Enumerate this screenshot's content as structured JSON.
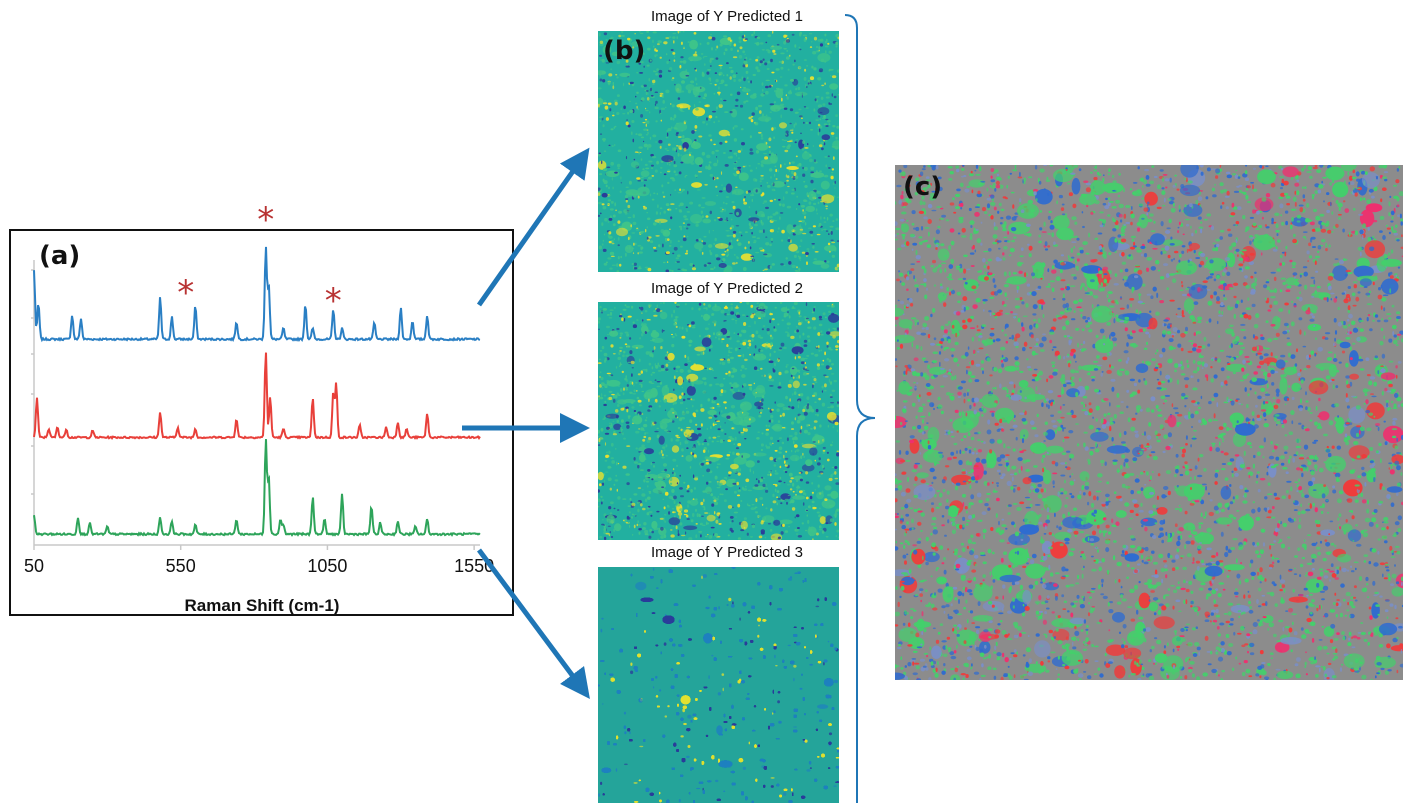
{
  "panels": {
    "a": {
      "label": "(a)"
    },
    "b": {
      "label": "(b)"
    },
    "c": {
      "label": "(c)"
    }
  },
  "chart_data": {
    "type": "line",
    "xlabel": "Raman Shift (cm-1)",
    "xticks": [
      "50",
      "550",
      "1050",
      "1550"
    ],
    "xlim": [
      50,
      1570
    ],
    "marker": "*",
    "marked_peaks": [
      550,
      840,
      1070
    ],
    "series": [
      {
        "color": "#2a7fc4",
        "x": [
          50,
          65,
          180,
          210,
          480,
          520,
          600,
          740,
          840,
          850,
          900,
          975,
          1000,
          1070,
          1100,
          1210,
          1300,
          1340,
          1390
        ],
        "y": [
          0.74,
          0.39,
          0.26,
          0.22,
          0.45,
          0.24,
          0.36,
          0.19,
          1.0,
          0.58,
          0.12,
          0.38,
          0.12,
          0.32,
          0.12,
          0.18,
          0.34,
          0.2,
          0.26
        ]
      },
      {
        "color": "#e8403a",
        "x": [
          60,
          100,
          130,
          160,
          250,
          480,
          540,
          600,
          740,
          840,
          855,
          900,
          1000,
          1070,
          1080,
          1160,
          1250,
          1290,
          1320,
          1390
        ],
        "y": [
          0.46,
          0.1,
          0.12,
          0.1,
          0.08,
          0.3,
          0.12,
          0.1,
          0.22,
          1.0,
          0.46,
          0.1,
          0.46,
          0.52,
          0.62,
          0.14,
          0.12,
          0.18,
          0.1,
          0.28
        ]
      },
      {
        "color": "#2ea45a",
        "x": [
          50,
          200,
          240,
          300,
          480,
          520,
          600,
          740,
          840,
          850,
          890,
          900,
          1000,
          1040,
          1100,
          1200,
          1230,
          1290,
          1350,
          1390
        ],
        "y": [
          0.2,
          0.18,
          0.12,
          0.08,
          0.18,
          0.14,
          0.1,
          0.16,
          1.0,
          0.6,
          0.16,
          0.1,
          0.4,
          0.16,
          0.42,
          0.3,
          0.12,
          0.14,
          0.08,
          0.16
        ]
      }
    ]
  },
  "predicted_maps": [
    {
      "title": "Image of Y Predicted 1",
      "colors": {
        "base": "#22b0a0",
        "high": "#e8e030",
        "low": "#2a3c9a",
        "mid": "#3ec48a"
      }
    },
    {
      "title": "Image of Y Predicted 2",
      "colors": {
        "base": "#22b0a0",
        "high": "#e8e030",
        "low": "#2a3c9a",
        "mid": "#3ec48a"
      }
    },
    {
      "title": "Image of Y Predicted 3",
      "colors": {
        "base": "#24a49a",
        "high": "#e0e030",
        "low": "#2a3c9a",
        "mid": "#1e80c0"
      }
    }
  ],
  "composite_map": {
    "colors": [
      "#f03a3a",
      "#2e6bd0",
      "#43d06b",
      "#ef2f6e",
      "#7a8fc8"
    ],
    "background": "#8c8c8c"
  },
  "style": {
    "arrow_color": "#1f76b6",
    "bracket_color": "#1f76b6",
    "marker_color": "#b83232"
  }
}
